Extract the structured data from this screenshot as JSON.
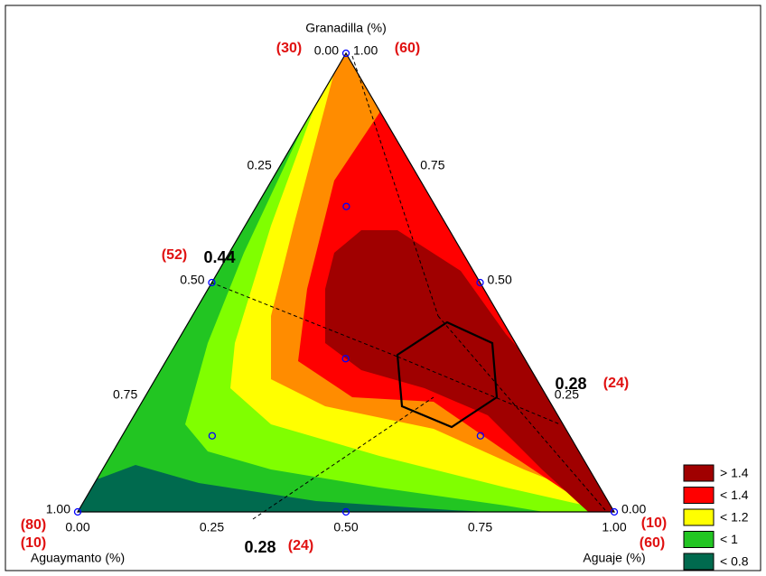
{
  "chart_data": {
    "type": "ternary",
    "axes": [
      {
        "name": "Granadilla (%)",
        "ticks": [
          {
            "value": 0,
            "label": "0.00"
          },
          {
            "value": 0.25,
            "label": "0.25"
          },
          {
            "value": 0.5,
            "label": "0.50"
          },
          {
            "value": 0.75,
            "label": "0.75"
          },
          {
            "value": 1,
            "label": "1.00"
          }
        ]
      },
      {
        "name": "Aguaymanto (%)",
        "ticks": [
          {
            "value": 0,
            "label": "0.00"
          },
          {
            "value": 0.25,
            "label": "0.25"
          },
          {
            "value": 0.5,
            "label": "0.50"
          },
          {
            "value": 0.75,
            "label": "0.75"
          },
          {
            "value": 1,
            "label": "1.00"
          }
        ]
      },
      {
        "name": "Aguaje (%)",
        "ticks": [
          {
            "value": 0,
            "label": "0.00"
          },
          {
            "value": 0.25,
            "label": "0.25"
          },
          {
            "value": 0.5,
            "label": "0.50"
          },
          {
            "value": 0.75,
            "label": "0.75"
          },
          {
            "value": 1,
            "label": "1.00"
          }
        ]
      }
    ],
    "points": {
      "granadilla": [
        1,
        0,
        0,
        0.5,
        0.5,
        0,
        0.667,
        0.333,
        0.167,
        0.167
      ],
      "aguaymanto": [
        0,
        1,
        0,
        0.5,
        0,
        0.5,
        0.167,
        0.333,
        0.667,
        0.167
      ],
      "aguaje": [
        0,
        0,
        1,
        0,
        0.5,
        0.5,
        0.167,
        0.333,
        0.167,
        0.667
      ]
    },
    "annotations": [
      "(30)",
      "(60)",
      "(52)",
      "0.44",
      "(80)",
      "(10)",
      "(10)",
      "(60)",
      "0.28",
      "(24)",
      "0.28",
      "(24)"
    ],
    "legend": {
      "labels": [
        "> 1.4",
        "< 1.4",
        "< 1.2",
        "< 1",
        "< 0.8"
      ],
      "colors": [
        "#a00000",
        "#ff0000",
        "#ffff00",
        "#22c522",
        "#006a4e"
      ]
    }
  }
}
